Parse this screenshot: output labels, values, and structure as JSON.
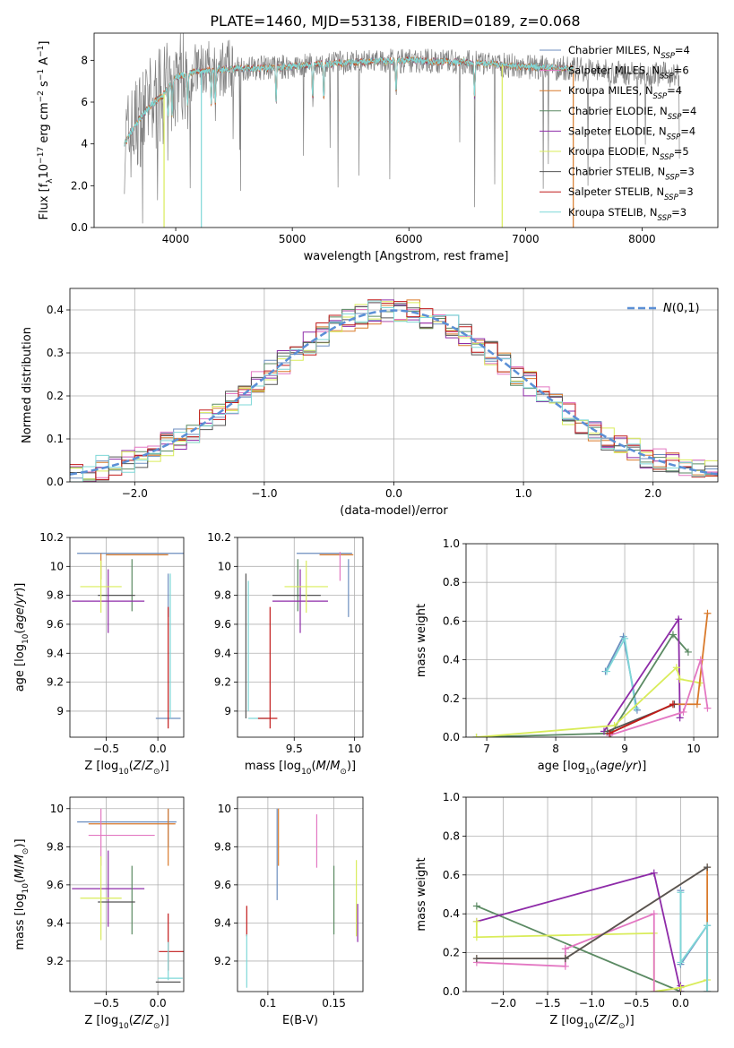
{
  "figure": {
    "title": "PLATE=1460, MJD=53138, FIBERID=0189, z=0.068"
  },
  "colors": {
    "chabrier_miles": "#6c8ebf",
    "salpeter_miles": "#e377c2",
    "kroupa_miles": "#d97a2b",
    "chabrier_elodie": "#5b8a63",
    "salpeter_elodie": "#8e2ba8",
    "kroupa_elodie": "#d9ec5a",
    "chabrier_stelib": "#555555",
    "salpeter_stelib": "#c11a1a",
    "kroupa_stelib": "#7fd8d8",
    "spectrum": "#808080",
    "gaussian": "#5b8fd6",
    "grid": "#b0b0b0"
  },
  "chart_data": [
    {
      "id": "spectrum",
      "type": "line",
      "xlabel": "wavelength [Angstrom, rest frame]",
      "ylabel": "Flux [f_λ 10^-17 erg cm^-2 s^-1 A^-1]",
      "xlim": [
        3300,
        8650
      ],
      "ylim": [
        0,
        9.3
      ],
      "xticks": [
        4000,
        5000,
        6000,
        7000,
        8000
      ],
      "yticks": [
        0,
        2,
        4,
        6,
        8
      ],
      "grid": false,
      "legend_position": "top-right",
      "legend": [
        {
          "key": "chabrier_miles",
          "label": "Chabrier MILES, N",
          "sub": "SSP",
          "tail": "=4"
        },
        {
          "key": "salpeter_miles",
          "label": "Salpeter MILES, N",
          "sub": "SSP",
          "tail": "=6"
        },
        {
          "key": "kroupa_miles",
          "label": "Kroupa MILES, N",
          "sub": "SSP",
          "tail": "=4"
        },
        {
          "key": "chabrier_elodie",
          "label": "Chabrier ELODIE, N",
          "sub": "SSP",
          "tail": "=4"
        },
        {
          "key": "salpeter_elodie",
          "label": "Salpeter ELODIE, N",
          "sub": "SSP",
          "tail": "=4"
        },
        {
          "key": "kroupa_elodie",
          "label": "Kroupa ELODIE, N",
          "sub": "SSP",
          "tail": "=5"
        },
        {
          "key": "chabrier_stelib",
          "label": "Chabrier STELIB, N",
          "sub": "SSP",
          "tail": "=3"
        },
        {
          "key": "salpeter_stelib",
          "label": "Salpeter STELIB, N",
          "sub": "SSP",
          "tail": "=3"
        },
        {
          "key": "kroupa_stelib",
          "label": "Kroupa STELIB, N",
          "sub": "SSP",
          "tail": "=3"
        }
      ],
      "continuum": [
        [
          3560,
          4.0
        ],
        [
          3700,
          5.3
        ],
        [
          3800,
          5.9
        ],
        [
          3900,
          6.4
        ],
        [
          4000,
          7.2
        ],
        [
          4200,
          7.5
        ],
        [
          4500,
          7.6
        ],
        [
          5000,
          7.7
        ],
        [
          5500,
          7.9
        ],
        [
          6000,
          8.0
        ],
        [
          6500,
          7.9
        ],
        [
          7000,
          7.7
        ],
        [
          7400,
          7.6
        ],
        [
          7800,
          7.4
        ],
        [
          8300,
          7.3
        ]
      ],
      "model_wmin": 3560,
      "model_wmax": 7410,
      "data_wmax": 8320
    },
    {
      "id": "residuals",
      "type": "step",
      "xlabel": "(data-model)/error",
      "ylabel": "Normed distribution",
      "xlim": [
        -2.5,
        2.5
      ],
      "ylim": [
        0,
        0.45
      ],
      "xticks": [
        -2,
        -1,
        0,
        1,
        2
      ],
      "yticks": [
        0.0,
        0.1,
        0.2,
        0.3,
        0.4
      ],
      "grid": true,
      "legend_position": "top-right",
      "gaussian_label": "N(0,1)",
      "bin_width": 0.1
    },
    {
      "id": "age-vs-Z",
      "type": "errorbar",
      "xlabel": "Z [log10(Z/Z⊙)]",
      "ylabel": "age  [log10(age/yr)]",
      "xlim": [
        -0.85,
        0.25
      ],
      "ylim": [
        8.82,
        10.2
      ],
      "xticks": [
        -0.5,
        0.0
      ],
      "yticks": [
        9.0,
        9.2,
        9.4,
        9.6,
        9.8,
        10.0,
        10.2
      ],
      "grid": true,
      "points": [
        {
          "key": "chabrier_miles",
          "x": -0.2,
          "xerr": 0.58,
          "y": 10.09,
          "yerr": 0.0
        },
        {
          "key": "chabrier_miles",
          "x": 0.1,
          "xerr": 0.0,
          "y": 9.8,
          "yerr": 0.15
        },
        {
          "key": "chabrier_miles",
          "x": 0.1,
          "xerr": 0.12,
          "y": 8.95,
          "yerr": 0.0
        },
        {
          "key": "kroupa_miles",
          "x": -0.2,
          "xerr": 0.3,
          "y": 10.08,
          "yerr": 0.0
        },
        {
          "key": "kroupa_miles",
          "x": -0.55,
          "xerr": 0.0,
          "y": 10.0,
          "yerr": 0.09
        },
        {
          "key": "chabrier_elodie",
          "x": -0.25,
          "xerr": 0.0,
          "y": 9.87,
          "yerr": 0.18
        },
        {
          "key": "chabrier_stelib",
          "x": -0.4,
          "xerr": 0.18,
          "y": 9.8,
          "yerr": 0.0
        },
        {
          "key": "salpeter_elodie",
          "x": -0.48,
          "xerr": 0.35,
          "y": 9.76,
          "yerr": 0.22
        },
        {
          "key": "kroupa_elodie",
          "x": -0.55,
          "xerr": 0.2,
          "y": 9.86,
          "yerr": 0.18
        },
        {
          "key": "salpeter_stelib",
          "x": 0.1,
          "xerr": 0.0,
          "y": 9.3,
          "yerr": 0.42
        },
        {
          "key": "kroupa_stelib",
          "x": 0.12,
          "xerr": 0.0,
          "y": 9.45,
          "yerr": 0.5
        }
      ]
    },
    {
      "id": "age-vs-mass",
      "type": "errorbar",
      "xlabel": "mass [log10(M/M⊙)]",
      "ylabel": "",
      "xlim": [
        9.03,
        10.07
      ],
      "ylim": [
        8.82,
        10.2
      ],
      "xticks": [
        9.5,
        10.0
      ],
      "yticks": [
        9.0,
        9.2,
        9.4,
        9.6,
        9.8,
        10.0,
        10.2
      ],
      "grid": true,
      "points": [
        {
          "key": "chabrier_miles",
          "x": 9.75,
          "xerr": 0.23,
          "y": 10.09,
          "yerr": 0.0
        },
        {
          "key": "kroupa_miles",
          "x": 9.85,
          "xerr": 0.14,
          "y": 10.08,
          "yerr": 0.0
        },
        {
          "key": "chabrier_miles",
          "x": 9.95,
          "xerr": 0.0,
          "y": 9.85,
          "yerr": 0.2
        },
        {
          "key": "salpeter_miles",
          "x": 9.88,
          "xerr": 0.0,
          "y": 10.0,
          "yerr": 0.1
        },
        {
          "key": "chabrier_elodie",
          "x": 9.53,
          "xerr": 0.0,
          "y": 9.87,
          "yerr": 0.18
        },
        {
          "key": "chabrier_stelib",
          "x": 9.52,
          "xerr": 0.2,
          "y": 9.8,
          "yerr": 0.0
        },
        {
          "key": "salpeter_elodie",
          "x": 9.55,
          "xerr": 0.23,
          "y": 9.76,
          "yerr": 0.22
        },
        {
          "key": "kroupa_elodie",
          "x": 9.6,
          "xerr": 0.18,
          "y": 9.86,
          "yerr": 0.18
        },
        {
          "key": "chabrier_stelib",
          "x": 9.1,
          "xerr": 0.0,
          "y": 9.45,
          "yerr": 0.5
        },
        {
          "key": "kroupa_stelib",
          "x": 9.12,
          "xerr": 0.0,
          "y": 9.45,
          "yerr": 0.45
        },
        {
          "key": "kroupa_stelib",
          "x": 9.2,
          "xerr": 0.08,
          "y": 8.95,
          "yerr": 0.0
        },
        {
          "key": "salpeter_stelib",
          "x": 9.3,
          "xerr": 0.0,
          "y": 9.3,
          "yerr": 0.42
        },
        {
          "key": "salpeter_stelib",
          "x": 9.28,
          "xerr": 0.08,
          "y": 8.95,
          "yerr": 0.0
        }
      ]
    },
    {
      "id": "weight-vs-age",
      "type": "line",
      "xlabel": "age  [log10(age/yr)]",
      "ylabel": "mass weight",
      "xlim": [
        6.7,
        10.35
      ],
      "ylim": [
        0,
        1.0
      ],
      "xticks": [
        7,
        8,
        9,
        10
      ],
      "yticks": [
        0.0,
        0.2,
        0.4,
        0.6,
        0.8,
        1.0
      ],
      "grid": true,
      "series": [
        {
          "key": "chabrier_miles",
          "x": [
            8.72,
            8.98,
            9.18
          ],
          "y": [
            0.34,
            0.52,
            0.14
          ]
        },
        {
          "key": "kroupa_stelib",
          "x": [
            8.74,
            9.0,
            9.16
          ],
          "y": [
            0.34,
            0.51,
            0.15
          ]
        },
        {
          "key": "chabrier_elodie",
          "x": [
            6.85,
            8.8,
            9.7,
            9.92
          ],
          "y": [
            0.0,
            0.02,
            0.53,
            0.44
          ]
        },
        {
          "key": "salpeter_elodie",
          "x": [
            8.7,
            9.78,
            9.8
          ],
          "y": [
            0.03,
            0.61,
            0.1
          ]
        },
        {
          "key": "kroupa_elodie",
          "x": [
            6.85,
            8.85,
            9.75,
            9.8,
            10.1
          ],
          "y": [
            0.0,
            0.06,
            0.36,
            0.3,
            0.28
          ]
        },
        {
          "key": "kroupa_miles",
          "x": [
            8.78,
            9.7,
            10.05,
            10.2
          ],
          "y": [
            0.02,
            0.17,
            0.17,
            0.64
          ]
        },
        {
          "key": "salpeter_miles",
          "x": [
            8.78,
            9.85,
            10.1,
            10.2
          ],
          "y": [
            0.01,
            0.13,
            0.4,
            0.15
          ]
        },
        {
          "key": "chabrier_stelib",
          "x": [
            8.75,
            9.72
          ],
          "y": [
            0.03,
            0.17
          ]
        },
        {
          "key": "salpeter_stelib",
          "x": [
            8.78,
            9.7
          ],
          "y": [
            0.02,
            0.17
          ]
        }
      ]
    },
    {
      "id": "mass-vs-Z",
      "type": "errorbar",
      "xlabel": "Z [log10(Z/Z⊙)]",
      "ylabel": "mass [log10(M/M⊙)]",
      "xlim": [
        -0.85,
        0.25
      ],
      "ylim": [
        9.04,
        10.06
      ],
      "xticks": [
        -0.5,
        0.0
      ],
      "yticks": [
        9.2,
        9.4,
        9.6,
        9.8,
        10.0
      ],
      "grid": true,
      "points": [
        {
          "key": "chabrier_miles",
          "x": -0.3,
          "xerr": 0.48,
          "y": 9.93,
          "yerr": 0.0
        },
        {
          "key": "kroupa_miles",
          "x": -0.25,
          "xerr": 0.42,
          "y": 9.92,
          "yerr": 0.0
        },
        {
          "key": "salpeter_miles",
          "x": -0.35,
          "xerr": 0.32,
          "y": 9.86,
          "yerr": 0.0
        },
        {
          "key": "salpeter_miles",
          "x": -0.55,
          "xerr": 0.0,
          "y": 9.85,
          "yerr": 0.15
        },
        {
          "key": "chabrier_miles",
          "x": 0.1,
          "xerr": 0.0,
          "y": 9.9,
          "yerr": 0.1
        },
        {
          "key": "kroupa_miles",
          "x": 0.1,
          "xerr": 0.0,
          "y": 9.85,
          "yerr": 0.15
        },
        {
          "key": "salpeter_elodie",
          "x": -0.48,
          "xerr": 0.35,
          "y": 9.58,
          "yerr": 0.2
        },
        {
          "key": "chabrier_elodie",
          "x": -0.25,
          "xerr": 0.0,
          "y": 9.52,
          "yerr": 0.18
        },
        {
          "key": "chabrier_stelib",
          "x": -0.4,
          "xerr": 0.18,
          "y": 9.51,
          "yerr": 0.0
        },
        {
          "key": "kroupa_elodie",
          "x": -0.55,
          "xerr": 0.2,
          "y": 9.53,
          "yerr": 0.22
        },
        {
          "key": "salpeter_stelib",
          "x": 0.1,
          "xerr": 0.0,
          "y": 9.3,
          "yerr": 0.15
        },
        {
          "key": "salpeter_stelib",
          "x": 0.13,
          "xerr": 0.12,
          "y": 9.25,
          "yerr": 0.0
        },
        {
          "key": "kroupa_stelib",
          "x": 0.1,
          "xerr": 0.0,
          "y": 9.2,
          "yerr": 0.1
        },
        {
          "key": "kroupa_stelib",
          "x": 0.12,
          "xerr": 0.12,
          "y": 9.11,
          "yerr": 0.0
        },
        {
          "key": "chabrier_stelib",
          "x": 0.1,
          "xerr": 0.12,
          "y": 9.09,
          "yerr": 0.0
        }
      ]
    },
    {
      "id": "mass-vs-ebv",
      "type": "errorbar",
      "xlabel": "E(B-V)",
      "ylabel": "",
      "xlim": [
        0.077,
        0.172
      ],
      "ylim": [
        9.04,
        10.06
      ],
      "xticks": [
        0.1,
        0.15
      ],
      "yticks": [
        9.2,
        9.4,
        9.6,
        9.8,
        10.0
      ],
      "grid": true,
      "points": [
        {
          "key": "salpeter_stelib",
          "x": 0.084,
          "xerr": 0.0,
          "y": 9.41,
          "yerr": 0.08
        },
        {
          "key": "kroupa_stelib",
          "x": 0.084,
          "xerr": 0.0,
          "y": 9.2,
          "yerr": 0.14
        },
        {
          "key": "chabrier_miles",
          "x": 0.107,
          "xerr": 0.0,
          "y": 9.76,
          "yerr": 0.24
        },
        {
          "key": "kroupa_miles",
          "x": 0.108,
          "xerr": 0.0,
          "y": 9.85,
          "yerr": 0.15
        },
        {
          "key": "salpeter_miles",
          "x": 0.137,
          "xerr": 0.0,
          "y": 9.83,
          "yerr": 0.14
        },
        {
          "key": "chabrier_elodie",
          "x": 0.15,
          "xerr": 0.0,
          "y": 9.52,
          "yerr": 0.18
        },
        {
          "key": "kroupa_elodie",
          "x": 0.167,
          "xerr": 0.0,
          "y": 9.53,
          "yerr": 0.2
        },
        {
          "key": "salpeter_elodie",
          "x": 0.168,
          "xerr": 0.0,
          "y": 9.4,
          "yerr": 0.1
        }
      ]
    },
    {
      "id": "weight-vs-Z",
      "type": "line",
      "xlabel": "Z [log10(Z/Z⊙)]",
      "ylabel": "mass weight",
      "xlim": [
        -2.42,
        0.42
      ],
      "ylim": [
        0,
        1.0
      ],
      "xticks": [
        -2.0,
        -1.5,
        -1.0,
        -0.5,
        0.0
      ],
      "yticks": [
        0.0,
        0.2,
        0.4,
        0.6,
        0.8,
        1.0
      ],
      "grid": true,
      "series": [
        {
          "key": "chabrier_elodie",
          "x": [
            -2.3,
            0.0,
            0.0
          ],
          "y": [
            0.44,
            0.0,
            0.0
          ]
        },
        {
          "key": "salpeter_elodie",
          "x": [
            -2.3,
            -0.3,
            0.0,
            0.0
          ],
          "y": [
            0.36,
            0.61,
            0.0,
            0.03
          ]
        },
        {
          "key": "kroupa_elodie",
          "x": [
            -2.3,
            -2.3,
            -0.3,
            -0.3,
            0.0,
            0.3
          ],
          "y": [
            0.36,
            0.28,
            0.3,
            0.0,
            0.02,
            0.06
          ]
        },
        {
          "key": "salpeter_miles",
          "x": [
            -2.3,
            -1.3,
            -1.3,
            -0.3,
            -0.3
          ],
          "y": [
            0.15,
            0.13,
            0.22,
            0.4,
            0.0
          ]
        },
        {
          "key": "kroupa_miles",
          "x": [
            -2.3,
            -1.3,
            0.3,
            0.3
          ],
          "y": [
            0.17,
            0.17,
            0.64,
            0.0
          ]
        },
        {
          "key": "chabrier_stelib",
          "x": [
            -2.3,
            -1.3,
            0.3
          ],
          "y": [
            0.17,
            0.17,
            0.64
          ]
        },
        {
          "key": "chabrier_miles",
          "x": [
            0.0,
            0.0,
            0.3,
            0.3
          ],
          "y": [
            0.52,
            0.14,
            0.34,
            0.0
          ]
        },
        {
          "key": "kroupa_stelib",
          "x": [
            0.0,
            0.0,
            0.3,
            0.3
          ],
          "y": [
            0.51,
            0.15,
            0.34,
            0.0
          ]
        }
      ]
    }
  ]
}
